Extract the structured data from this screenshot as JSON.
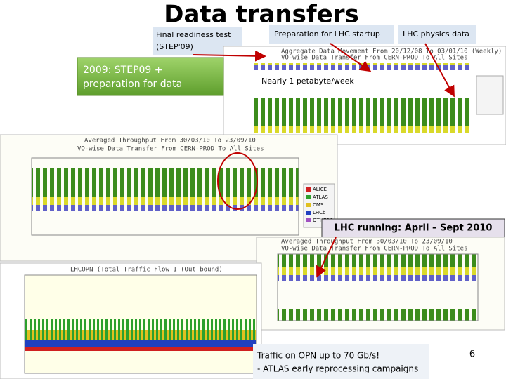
{
  "title": "Data transfers",
  "labels": {
    "step09": [
      "Final readiness test",
      "(STEP'09)"
    ],
    "lhc_startup": "Preparation for LHC startup",
    "lhc_physics": "LHC physics data"
  },
  "green_box": [
    "2009: STEP09 +",
    "preparation for data"
  ],
  "petabyte_note": "Nearly 1 petabyte/week",
  "lhc_running": "LHC running: April – Sept 2010",
  "traffic_note": [
    "Traffic on OPN up to 70 Gb/s!",
    "- ATLAS early reprocessing campaigns"
  ],
  "page_number": "6",
  "panels": {
    "aggregate": {
      "title": "Aggregate Data Movement From 20/12/08 To 03/01/10 (Weekly)",
      "subtitle": "VO-wise Data Transfer From CERN-PROD To All Sites"
    },
    "throughput_2009": {
      "title": "Averaged Throughput From 30/03/10 To 23/09/10",
      "subtitle": "VO-wise Data Transfer From CERN-PROD To All Sites",
      "legend": [
        "ALICE",
        "ATLAS",
        "CMS",
        "LHCb",
        "OTHERS"
      ]
    },
    "throughput_2010": {
      "title": "Averaged Throughput From 30/03/10 To 23/09/10",
      "subtitle": "VO-wise Data Transfer From CERN-PROD To All Sites"
    },
    "opn": {
      "title": "LHCOPN (Total Traffic Flow 1 (Out bound)"
    }
  }
}
